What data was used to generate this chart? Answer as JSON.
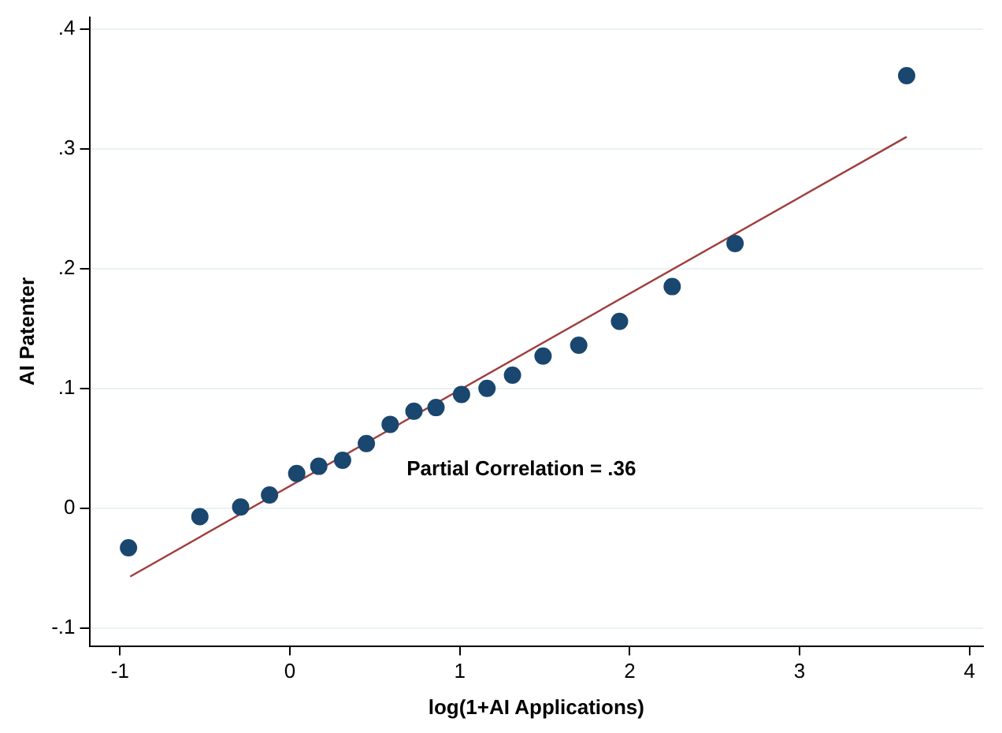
{
  "chart_data": {
    "type": "scatter",
    "xlabel": "log(1+AI Applications)",
    "ylabel": "AI Patenter",
    "xlim": [
      -1.18,
      4.08
    ],
    "ylim": [
      -0.115,
      0.41
    ],
    "xticks": [
      -1,
      0,
      1,
      2,
      3,
      4
    ],
    "yticks": [
      {
        "value": -0.1,
        "label": "-.1"
      },
      {
        "value": 0,
        "label": "0"
      },
      {
        "value": 0.1,
        "label": ".1"
      },
      {
        "value": 0.2,
        "label": ".2"
      },
      {
        "value": 0.3,
        "label": ".3"
      },
      {
        "value": 0.4,
        "label": ".4"
      }
    ],
    "grid": "y",
    "legend": false,
    "annotations": [
      "Partial Correlation = .36"
    ],
    "series": [
      {
        "marker": "circle",
        "color": "#1a476f",
        "x": [
          -0.95,
          -0.53,
          -0.29,
          -0.12,
          0.04,
          0.17,
          0.31,
          0.45,
          0.59,
          0.73,
          0.86,
          1.01,
          1.16,
          1.31,
          1.49,
          1.7,
          1.94,
          2.25,
          2.62,
          3.63
        ],
        "values": [
          -0.033,
          -0.007,
          0.001,
          0.011,
          0.029,
          0.035,
          0.04,
          0.054,
          0.07,
          0.081,
          0.084,
          0.095,
          0.1,
          0.111,
          0.127,
          0.136,
          0.156,
          0.185,
          0.221,
          0.361
        ]
      },
      {
        "type": "line",
        "marker": "none",
        "color": "#a03c3c",
        "x": [
          -0.94,
          3.63
        ],
        "values": [
          -0.057,
          0.31
        ]
      }
    ]
  }
}
